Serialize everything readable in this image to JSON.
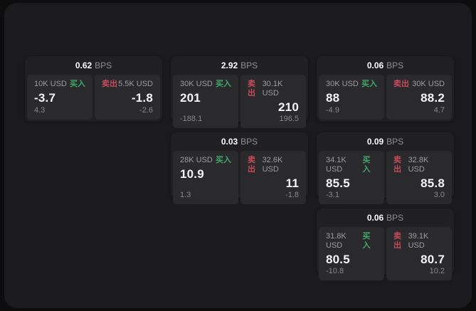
{
  "colors": {
    "buy_green": "#3fa868",
    "sell_red": "#c44a5a",
    "panel_bg": "#2a2a2d",
    "card_bg": "#202023",
    "page_bg": "#1b1b1d"
  },
  "cards": [
    {
      "bps_value": "0.62",
      "bps_unit": "BPS",
      "buy": {
        "amount": "10K USD",
        "side_label": "买入",
        "price": "-3.7",
        "delta": "4.3"
      },
      "sell": {
        "side_label": "卖出",
        "amount": "5.5K USD",
        "price": "-1.8",
        "delta": "-2.6"
      }
    },
    {
      "bps_value": "2.92",
      "bps_unit": "BPS",
      "buy": {
        "amount": "30K USD",
        "side_label": "买入",
        "price": "201",
        "delta": "-188.1"
      },
      "sell": {
        "side_label": "卖出",
        "amount": "30.1K USD",
        "price": "210",
        "delta": "196.5"
      }
    },
    {
      "bps_value": "0.06",
      "bps_unit": "BPS",
      "buy": {
        "amount": "30K USD",
        "side_label": "买入",
        "price": "88",
        "delta": "-4.9"
      },
      "sell": {
        "side_label": "卖出",
        "amount": "30K USD",
        "price": "88.2",
        "delta": "4.7"
      }
    },
    {
      "bps_value": "0.03",
      "bps_unit": "BPS",
      "buy": {
        "amount": "28K USD",
        "side_label": "买入",
        "price": "10.9",
        "delta": "1.3"
      },
      "sell": {
        "side_label": "卖出",
        "amount": "32.6K USD",
        "price": "11",
        "delta": "-1.8"
      }
    },
    {
      "bps_value": "0.09",
      "bps_unit": "BPS",
      "buy": {
        "amount": "34.1K USD",
        "side_label": "买入",
        "price": "85.5",
        "delta": "-3.1"
      },
      "sell": {
        "side_label": "卖出",
        "amount": "32.8K USD",
        "price": "85.8",
        "delta": "3.0"
      }
    },
    {
      "bps_value": "0.06",
      "bps_unit": "BPS",
      "buy": {
        "amount": "31.8K USD",
        "side_label": "买入",
        "price": "80.5",
        "delta": "-10.8"
      },
      "sell": {
        "side_label": "卖出",
        "amount": "39.1K USD",
        "price": "80.7",
        "delta": "10.2"
      }
    }
  ]
}
